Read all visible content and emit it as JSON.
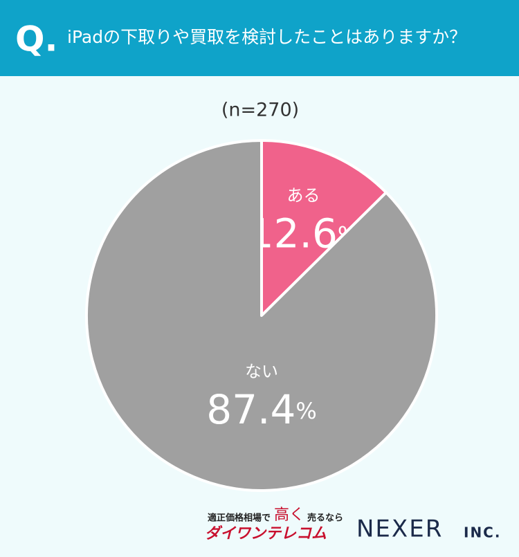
{
  "chart_data": {
    "type": "pie",
    "marker": "Q.",
    "title": "iPadの下取りや買取を検討したことはありますか？",
    "subtitle": "(n=270)",
    "categories": [
      "ある",
      "ない"
    ],
    "values": [
      12.6,
      87.4
    ],
    "value_labels": [
      "12.6%",
      "87.4%"
    ],
    "colors": [
      "#f0628b",
      "#a0a0a0"
    ]
  },
  "footer": {
    "tagline_1": "適正価格相場で",
    "tagline_2": "高く",
    "tagline_3": "売るなら",
    "brand": "ダイワンテレコム",
    "company": "NEXER",
    "company_suffix": "INC."
  }
}
